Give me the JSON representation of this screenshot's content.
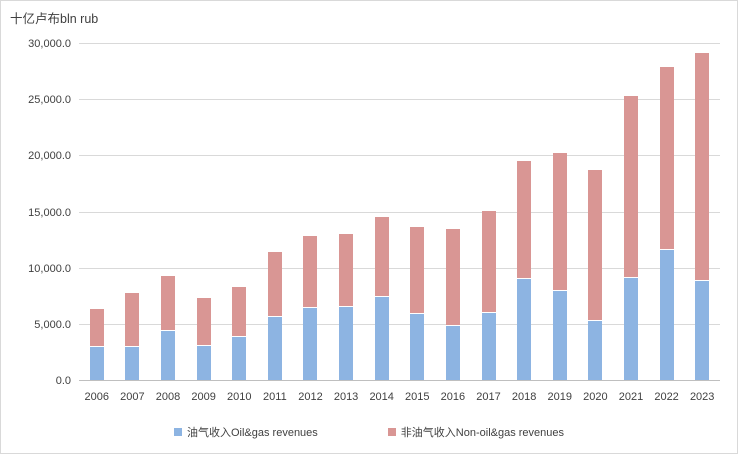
{
  "title": "十亿卢布bln rub",
  "colors": {
    "oil_gas": "#8db4e2",
    "non_oil_gas": "#d99694",
    "gridline": "#d9d9d9",
    "axis_line": "#bfbfbf",
    "text": "#404040",
    "chart_border": "#d9d9d9",
    "background": "#ffffff"
  },
  "chart_data": {
    "type": "bar",
    "stacked": true,
    "title": "十亿卢布bln rub",
    "xlabel": "",
    "ylabel": "十亿卢布bln rub",
    "categories": [
      "2006",
      "2007",
      "2008",
      "2009",
      "2010",
      "2011",
      "2012",
      "2013",
      "2014",
      "2015",
      "2016",
      "2017",
      "2018",
      "2019",
      "2020",
      "2021",
      "2022",
      "2023"
    ],
    "series": [
      {
        "name": "油气收入Oil&gas revenues",
        "color": "#8db4e2",
        "values": [
          2943.5,
          2897.4,
          4389.4,
          2984.0,
          3830.7,
          5641.8,
          6453.2,
          6534.0,
          7433.8,
          5862.7,
          4844.0,
          5971.9,
          9017.8,
          7924.3,
          5235.2,
          9056.5,
          11586.2,
          8822.3
        ]
      },
      {
        "name": "非油气收入Non-oil&gas revenues",
        "color": "#d99694",
        "values": [
          3335.3,
          4883.7,
          4886.5,
          4353.8,
          4474.7,
          5725.9,
          6402.4,
          6485.9,
          7063.1,
          7796.6,
          8616.0,
          9117.0,
          10436.6,
          12264.5,
          13487.0,
          16229.9,
          16238.4,
          20301.5
        ]
      }
    ],
    "ylim": [
      0,
      30000
    ],
    "ytick_step": 5000,
    "ytick_labels": [
      "0.0",
      "5,000.0",
      "10,000.0",
      "15,000.0",
      "20,000.0",
      "25,000.0",
      "30,000.0"
    ],
    "grid": true,
    "legend_position": "bottom"
  }
}
